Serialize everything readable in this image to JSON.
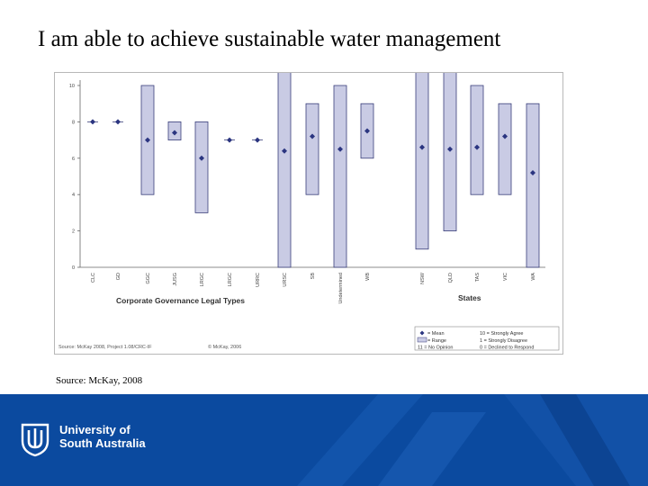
{
  "slide": {
    "title": "I am able to achieve sustainable water management",
    "source_caption": "Source: McKay, 2008"
  },
  "footer": {
    "university_line1": "University of",
    "university_line2": "South Australia",
    "background_color": "#0b4a9f"
  },
  "chart_data": {
    "type": "range-mean",
    "ylim": [
      0,
      10
    ],
    "yticks": [
      0,
      2,
      4,
      6,
      8,
      10
    ],
    "group_labels": [
      "Corporate Governance Legal Types",
      "States"
    ],
    "categories": [
      "CLC",
      "GD",
      "GGC",
      "JUSG",
      "LRGC",
      "LRGC",
      "URRC",
      "URSC",
      "SB",
      "Undetermined",
      "WB",
      "NSW",
      "QLD",
      "TAS",
      "VIC",
      "WA"
    ],
    "mean": [
      8,
      8,
      7,
      7.4,
      6,
      7,
      7,
      6.4,
      7.2,
      6.5,
      7.5,
      6.6,
      6.5,
      6.6,
      7.2,
      5.2
    ],
    "range_low": [
      null,
      null,
      4,
      7,
      3,
      null,
      null,
      0,
      4,
      0,
      6,
      1,
      2,
      4,
      4,
      0
    ],
    "range_high": [
      null,
      null,
      10,
      8,
      8,
      null,
      null,
      11,
      9,
      10,
      9,
      11,
      11,
      10,
      9,
      9
    ],
    "legend": {
      "mean": "= Mean",
      "range": "= Range",
      "no_opinion": "11 = No Opinion",
      "strongly_agree": "10 = Strongly Agree",
      "strongly_disagree": "1 = Strongly Disagree",
      "declined": "0 = Declined to Respond"
    },
    "source_note": "Source: McKay 2008, Project 1.08/CRC-IF",
    "copyright": "© McKay, 2006",
    "colors": {
      "bar_fill": "#c9cbe4",
      "bar_stroke": "#3a3f7a",
      "marker": "#2b3580"
    }
  }
}
